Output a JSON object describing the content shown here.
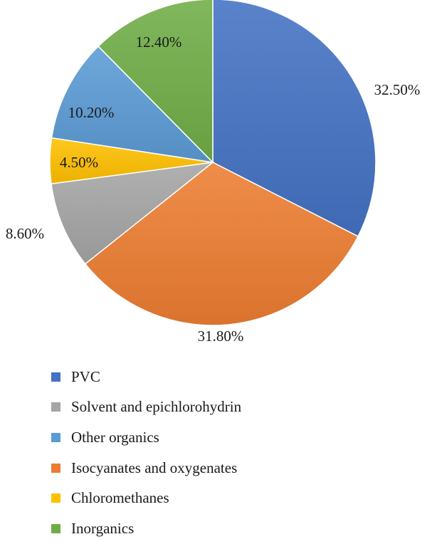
{
  "chart_data": {
    "type": "pie",
    "start_angle_deg": 0,
    "direction": "clockwise",
    "slices": [
      {
        "key": "pvc",
        "label": "PVC",
        "value": 32.5,
        "display": "32.50%",
        "color": "#4472c4"
      },
      {
        "key": "isocyanates",
        "label": "Isocyanates and oxygenates",
        "value": 31.8,
        "display": "31.80%",
        "color": "#ed7d31"
      },
      {
        "key": "solvent",
        "label": "Solvent and epichlorohydrin",
        "value": 8.6,
        "display": "8.60%",
        "color": "#a5a5a5"
      },
      {
        "key": "chloromethanes",
        "label": "Chloromethanes",
        "value": 4.5,
        "display": "4.50%",
        "color": "#ffc000"
      },
      {
        "key": "other_organics",
        "label": "Other organics",
        "value": 10.2,
        "display": "10.20%",
        "color": "#5b9bd5"
      },
      {
        "key": "inorganics",
        "label": "Inorganics",
        "value": 12.4,
        "display": "12.40%",
        "color": "#70ad47"
      }
    ],
    "legend": {
      "placement": "bottom-left",
      "order": [
        "pvc",
        "solvent",
        "other_organics",
        "isocyanates",
        "chloromethanes",
        "inorganics"
      ]
    }
  }
}
